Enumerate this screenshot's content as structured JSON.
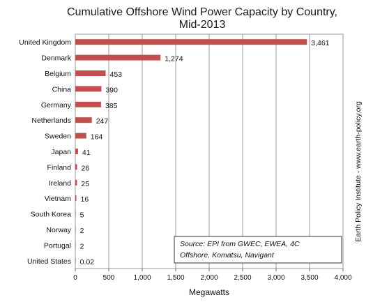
{
  "chart_data": {
    "type": "bar",
    "orientation": "horizontal",
    "title": "Cumulative Offshore Wind Power Capacity by Country,",
    "subtitle": "Mid-2013",
    "categories": [
      "United Kingdom",
      "Denmark",
      "Belgium",
      "China",
      "Germany",
      "Netherlands",
      "Sweden",
      "Japan",
      "Finland",
      "Ireland",
      "Vietnam",
      "South Korea",
      "Norway",
      "Portugal",
      "United States"
    ],
    "values": [
      3461,
      1274,
      453,
      390,
      385,
      247,
      164,
      41,
      26,
      25,
      16,
      5,
      2,
      2,
      0.02
    ],
    "value_labels": [
      "3,461",
      "1,274",
      "453",
      "390",
      "385",
      "247",
      "164",
      "41",
      "26",
      "25",
      "16",
      "5",
      "2",
      "2",
      "0.02"
    ],
    "xlabel": "Megawatts",
    "ylabel": "",
    "xlim": [
      0,
      4000
    ],
    "xticks": [
      0,
      500,
      1000,
      1500,
      2000,
      2500,
      3000,
      3500,
      4000
    ],
    "xtick_labels": [
      "0",
      "500",
      "1,000",
      "1,500",
      "2,000",
      "2,500",
      "3,000",
      "3,500",
      "4,000"
    ],
    "grid": true,
    "bar_color": "#c0504d",
    "source_line1": "Source: EPI from GWEC, EWEA, 4C",
    "source_line2": "Offshore, Komatsu, Navigant",
    "side_credit": "Earth Policy Institute - www.earth-policy.org"
  }
}
